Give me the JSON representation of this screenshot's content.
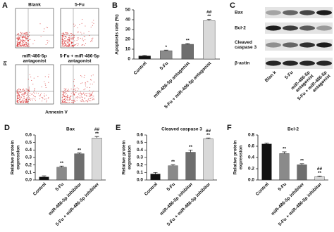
{
  "figure_panels": {
    "A": {
      "panel": "A",
      "y_label": "PI",
      "x_label": "Annexin V",
      "plots": [
        {
          "label": [
            "Blank"
          ]
        },
        {
          "label": [
            "5-Fu"
          ]
        },
        {
          "label": [
            "miR-486-5p",
            "antagonist"
          ]
        },
        {
          "label": [
            "5-Fu + miR-486-5p",
            "antagonist"
          ]
        }
      ]
    },
    "C": {
      "panel": "C",
      "rows": [
        [
          "Bax"
        ],
        [
          "Bcl-2"
        ],
        [
          "Cleaved",
          "caspase 3"
        ],
        [
          "β-actin"
        ]
      ],
      "lanes": [
        [
          "Blan k"
        ],
        [
          "5-Fu"
        ],
        [
          "miR-486-5p",
          "antagonist"
        ],
        [
          "5-Fu + miR-486-5p",
          "antagonist"
        ]
      ]
    }
  },
  "chart_data": [
    {
      "type": "bar",
      "panel": "B",
      "y_label": [
        "Apoptosis rate (%)"
      ],
      "categories": [
        "Control",
        "5-Fu",
        "miR-486-5p antagonist",
        "5-Fu + miR-486-5p antagonist"
      ],
      "values": [
        3.2,
        8.5,
        15,
        39
      ],
      "errors": [
        0.5,
        0.6,
        0.7,
        1.5
      ],
      "colors": [
        "#111111",
        "#8a8a8a",
        "#6e6e6e",
        "#d9d9d9"
      ],
      "annotations": [
        null,
        [
          "*"
        ],
        [
          "**"
        ],
        [
          "##",
          "**"
        ]
      ],
      "ylim": [
        0,
        50
      ],
      "yticks": [
        0,
        10,
        20,
        30,
        40,
        50
      ]
    },
    {
      "type": "bar",
      "panel": "D",
      "title": "Bax",
      "y_label": [
        "Relative protein",
        "expression"
      ],
      "categories": [
        "Control",
        "5-Fu",
        "miR-486-5p inhibitor",
        "5-Fu + miR-486-5p inhibitor"
      ],
      "values": [
        0.04,
        0.17,
        0.35,
        0.56
      ],
      "errors": [
        0.015,
        0.015,
        0.01,
        0.02
      ],
      "colors": [
        "#111111",
        "#8a8a8a",
        "#6e6e6e",
        "#d9d9d9"
      ],
      "annotations": [
        null,
        [
          "**"
        ],
        [
          "**"
        ],
        [
          "##",
          "**"
        ]
      ],
      "ylim": [
        0,
        0.6
      ],
      "yticks": [
        {
          "value": 0,
          "label": "0.0"
        },
        {
          "value": 0.1,
          "label": "0.1"
        },
        {
          "value": 0.2,
          "label": "0.2"
        },
        {
          "value": 0.3,
          "label": "0.3"
        },
        {
          "value": 0.4,
          "label": "0.4"
        },
        {
          "value": 0.5,
          "label": "0.5"
        },
        {
          "value": 0.6,
          "label": "0.6"
        }
      ]
    },
    {
      "type": "bar",
      "panel": "E",
      "title": "Cleaved caspase 3",
      "y_label": [
        "Relative protein",
        "expression"
      ],
      "categories": [
        "Control",
        "5-Fu",
        "miR-486-5p inhibitor",
        "5-Fu + miR-486-5p inhibitor"
      ],
      "values": [
        0.08,
        0.19,
        0.37,
        0.55
      ],
      "errors": [
        0.02,
        0.015,
        0.03,
        0.01
      ],
      "colors": [
        "#111111",
        "#8a8a8a",
        "#6e6e6e",
        "#d9d9d9"
      ],
      "annotations": [
        null,
        [
          "**"
        ],
        [
          "**"
        ],
        [
          "##",
          "**"
        ]
      ],
      "ylim": [
        0,
        0.6
      ],
      "yticks": [
        {
          "value": 0,
          "label": "0.0"
        },
        {
          "value": 0.1,
          "label": "0.1"
        },
        {
          "value": 0.2,
          "label": "0.2"
        },
        {
          "value": 0.3,
          "label": "0.3"
        },
        {
          "value": 0.4,
          "label": "0.4"
        },
        {
          "value": 0.5,
          "label": "0.5"
        },
        {
          "value": 0.6,
          "label": "0.6"
        }
      ]
    },
    {
      "type": "bar",
      "panel": "F",
      "title": "Bcl-2",
      "y_label": [
        "Relative protein",
        "expression"
      ],
      "categories": [
        "Control",
        "5-Fu",
        "miR-486-5p inhibitor",
        "5-Fu + miR-486-5p inhibitor"
      ],
      "values": [
        0.64,
        0.47,
        0.27,
        0.06
      ],
      "errors": [
        0.015,
        0.03,
        0.02,
        0.01
      ],
      "colors": [
        "#111111",
        "#8a8a8a",
        "#6e6e6e",
        "#d9d9d9"
      ],
      "annotations": [
        null,
        [
          "**"
        ],
        [
          "**"
        ],
        [
          "##",
          "**"
        ]
      ],
      "ylim": [
        0,
        0.8
      ],
      "yticks": [
        {
          "value": 0,
          "label": "0.0"
        },
        {
          "value": 0.2,
          "label": "0.2"
        },
        {
          "value": 0.4,
          "label": "0.4"
        },
        {
          "value": 0.6,
          "label": "0.6"
        },
        {
          "value": 0.8,
          "label": "0.8"
        }
      ]
    }
  ]
}
